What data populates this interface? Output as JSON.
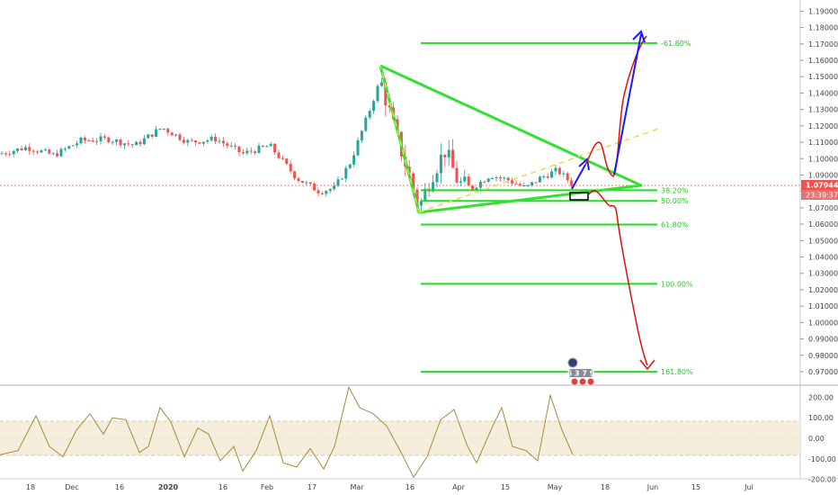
{
  "chart_data": [
    {
      "type": "candlestick",
      "name": "",
      "y_ticks": [
        "1.19000",
        "1.18000",
        "1.17000",
        "1.16000",
        "1.15000",
        "1.14000",
        "1.13000",
        "1.12000",
        "1.11000",
        "1.10000",
        "1.09000",
        "1.08000",
        "1.07000",
        "1.06000",
        "1.05000",
        "1.04000",
        "1.03000",
        "1.02000",
        "1.01000",
        "1.00000",
        "0.99000",
        "0.98000",
        "0.97000"
      ],
      "ylim": [
        0.9623,
        1.1968
      ],
      "x_ticks": [
        "18",
        "Dec",
        "16",
        "2020",
        "16",
        "Feb",
        "17",
        "Mar",
        "16",
        "Apr",
        "15",
        "May",
        "18",
        "Jun",
        "15",
        "Jul"
      ],
      "last_price": "1.07944",
      "countdown": "23:39:37",
      "fib_levels": [
        {
          "label": "-61.80%",
          "price": 1.1705
        },
        {
          "label": "38.20%",
          "price": 1.0807
        },
        {
          "label": "50.00%",
          "price": 1.0742
        },
        {
          "label": "61.80%",
          "price": 1.0598
        },
        {
          "label": "100.00%",
          "price": 1.0236
        },
        {
          "label": "161.80%",
          "price": 0.9699
        }
      ],
      "event_badge": "5 3 7 9",
      "colors": {
        "up": "#26a69a",
        "down": "#ef5350",
        "fib": "#22dd22",
        "price_line": "#ef5350",
        "forecast_up": "#1a1aff",
        "forecast_down": "#e01010",
        "trend": "#e8d84a"
      }
    },
    {
      "type": "line",
      "name": "",
      "y_ticks": [
        "200.00",
        "100.00",
        "0.00",
        "-100.00",
        "-200.00"
      ],
      "ylim": [
        -246,
        246
      ],
      "band": [
        -100,
        100
      ],
      "color": "#a88a3a"
    }
  ]
}
